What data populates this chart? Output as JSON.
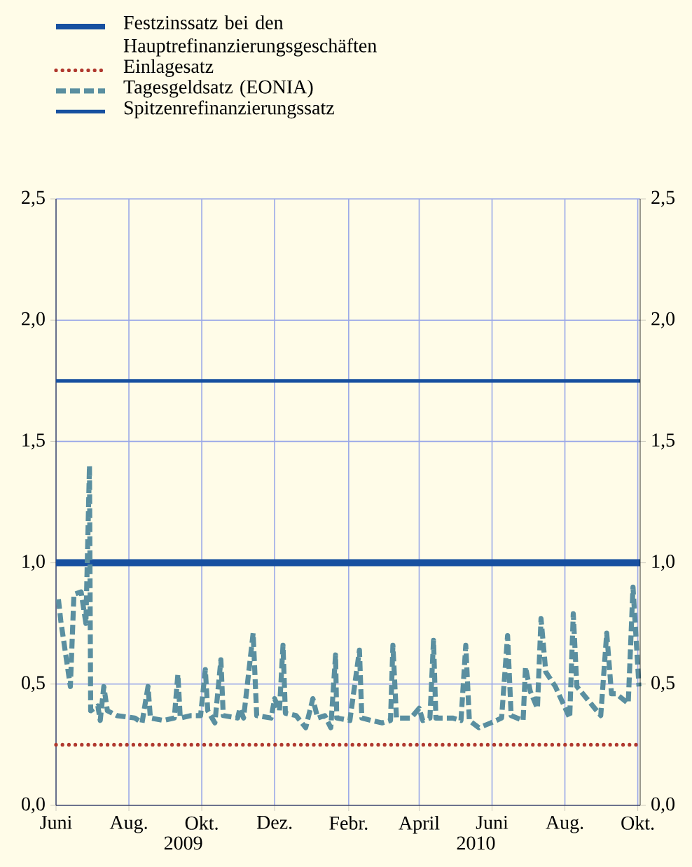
{
  "chart_data": {
    "type": "line",
    "xlim": [
      "2009-06-01",
      "2010-10-03"
    ],
    "xticks": [
      {
        "value": "2009-06-01",
        "label": "Juni"
      },
      {
        "value": "2009-08-01",
        "label": "Aug."
      },
      {
        "value": "2009-10-01",
        "label": "Okt."
      },
      {
        "value": "2009-12-01",
        "label": "Dez."
      },
      {
        "value": "2010-02-01",
        "label": "Febr."
      },
      {
        "value": "2010-04-01",
        "label": "April"
      },
      {
        "value": "2010-06-01",
        "label": "Juni"
      },
      {
        "value": "2010-08-01",
        "label": "Aug."
      },
      {
        "value": "2010-10-01",
        "label": "Okt."
      }
    ],
    "ylim": [
      0,
      2.5
    ],
    "yticks": [
      {
        "value": 0,
        "label": "0,0"
      },
      {
        "value": 0.5,
        "label": "0,5"
      },
      {
        "value": 1,
        "label": "1,0"
      },
      {
        "value": 1.5,
        "label": "1,5"
      },
      {
        "value": 2,
        "label": "2,0"
      },
      {
        "value": 2.5,
        "label": "2,5"
      }
    ],
    "y2lim": [
      0,
      2.5
    ],
    "y2ticks": [
      {
        "value": 0,
        "label": "0,0"
      },
      {
        "value": 0.5,
        "label": "0,5"
      },
      {
        "value": 1,
        "label": "1,0"
      },
      {
        "value": 1.5,
        "label": "1,5"
      },
      {
        "value": 2,
        "label": "2,0"
      },
      {
        "value": 2.5,
        "label": "2,5"
      }
    ],
    "grid": true,
    "legend": "top",
    "annotations": [
      "2009",
      "2010"
    ],
    "series": [
      {
        "name": "Festzinssatz bei den Hauptrefinanzierungsgeschäften",
        "color": "#1750a0",
        "line_style": "solid",
        "x": [
          "2009-06-01",
          "2010-10-03"
        ],
        "values": [
          1.0,
          1.0
        ]
      },
      {
        "name": "Einlagesatz",
        "color": "#b0382e",
        "line_style": "dotted",
        "x": [
          "2009-06-01",
          "2010-10-03"
        ],
        "values": [
          0.25,
          0.25
        ]
      },
      {
        "name": "Tagesgeldsatz (EONIA)",
        "color": "#5a8fa0",
        "line_style": "dashed",
        "x": [
          "2009-06-03",
          "2009-06-05",
          "2009-06-13",
          "2009-06-16",
          "2009-06-22",
          "2009-06-26",
          "2009-06-29",
          "2009-06-30",
          "2009-07-06",
          "2009-07-08",
          "2009-07-11",
          "2009-07-14",
          "2009-07-22",
          "2009-08-06",
          "2009-08-12",
          "2009-08-17",
          "2009-08-19",
          "2009-08-30",
          "2009-09-08",
          "2009-09-11",
          "2009-09-13",
          "2009-09-22",
          "2009-09-30",
          "2009-10-04",
          "2009-10-06",
          "2009-10-12",
          "2009-10-17",
          "2009-10-19",
          "2009-10-31",
          "2009-11-02",
          "2009-11-05",
          "2009-11-13",
          "2009-11-16",
          "2009-11-28",
          "2009-12-01",
          "2009-12-05",
          "2009-12-08",
          "2009-12-10",
          "2009-12-19",
          "2009-12-27",
          "2010-01-02",
          "2010-01-06",
          "2010-01-12",
          "2010-01-17",
          "2010-01-21",
          "2010-01-22",
          "2010-02-02",
          "2010-02-10",
          "2010-02-12",
          "2010-02-20",
          "2010-03-01",
          "2010-03-08",
          "2010-03-10",
          "2010-03-13",
          "2010-03-25",
          "2010-04-01",
          "2010-04-04",
          "2010-04-10",
          "2010-04-13",
          "2010-04-15",
          "2010-04-29",
          "2010-05-06",
          "2010-05-10",
          "2010-05-13",
          "2010-05-21",
          "2010-05-31",
          "2010-06-09",
          "2010-06-14",
          "2010-06-17",
          "2010-06-27",
          "2010-06-29",
          "2010-07-03",
          "2010-07-09",
          "2010-07-12",
          "2010-07-16",
          "2010-07-24",
          "2010-08-05",
          "2010-08-08",
          "2010-08-11",
          "2010-08-21",
          "2010-08-31",
          "2010-09-05",
          "2010-09-09",
          "2010-09-13",
          "2010-09-23",
          "2010-09-27",
          "2010-10-02"
        ],
        "values": [
          0.85,
          0.76,
          0.49,
          0.87,
          0.88,
          0.75,
          1.4,
          0.39,
          0.41,
          0.35,
          0.49,
          0.39,
          0.37,
          0.36,
          0.34,
          0.49,
          0.36,
          0.35,
          0.36,
          0.54,
          0.36,
          0.37,
          0.37,
          0.56,
          0.39,
          0.34,
          0.6,
          0.37,
          0.36,
          0.4,
          0.36,
          0.71,
          0.37,
          0.36,
          0.44,
          0.39,
          0.66,
          0.38,
          0.37,
          0.32,
          0.44,
          0.36,
          0.37,
          0.32,
          0.62,
          0.36,
          0.35,
          0.64,
          0.36,
          0.35,
          0.34,
          0.35,
          0.66,
          0.36,
          0.36,
          0.4,
          0.35,
          0.36,
          0.68,
          0.36,
          0.36,
          0.35,
          0.66,
          0.35,
          0.32,
          0.34,
          0.36,
          0.7,
          0.37,
          0.35,
          0.57,
          0.47,
          0.4,
          0.77,
          0.55,
          0.49,
          0.36,
          0.79,
          0.49,
          0.43,
          0.37,
          0.71,
          0.46,
          0.46,
          0.42,
          0.9,
          0.49
        ]
      },
      {
        "name": "Spitzenrefinanzierungssatz",
        "color": "#1750a0",
        "line_style": "solid",
        "x": [
          "2009-06-01",
          "2010-10-03"
        ],
        "values": [
          1.75,
          1.75
        ]
      }
    ]
  }
}
